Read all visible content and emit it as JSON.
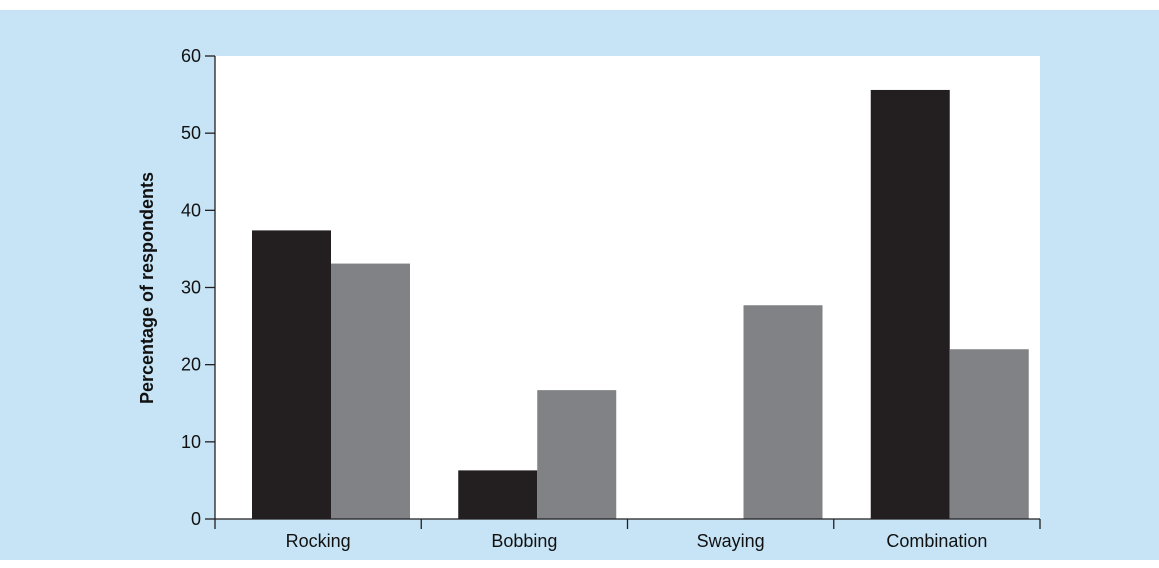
{
  "chart_data": {
    "type": "bar",
    "title": "",
    "xlabel": "",
    "ylabel": "Percentage of respondents",
    "categories": [
      "Rocking",
      "Bobbing",
      "Swaying",
      "Combination"
    ],
    "series": [
      {
        "color": "#231f20",
        "values": [
          37.4,
          6.3,
          0,
          55.6
        ]
      },
      {
        "color": "#808285",
        "values": [
          33.1,
          16.7,
          27.7,
          22.0
        ]
      }
    ],
    "ylim": [
      0,
      60
    ],
    "yticks": [
      0,
      10,
      20,
      30,
      40,
      50,
      60
    ],
    "grid": false,
    "legend": "none",
    "plot_background": "#ffffff",
    "panel_background": "#c6e4f6"
  }
}
